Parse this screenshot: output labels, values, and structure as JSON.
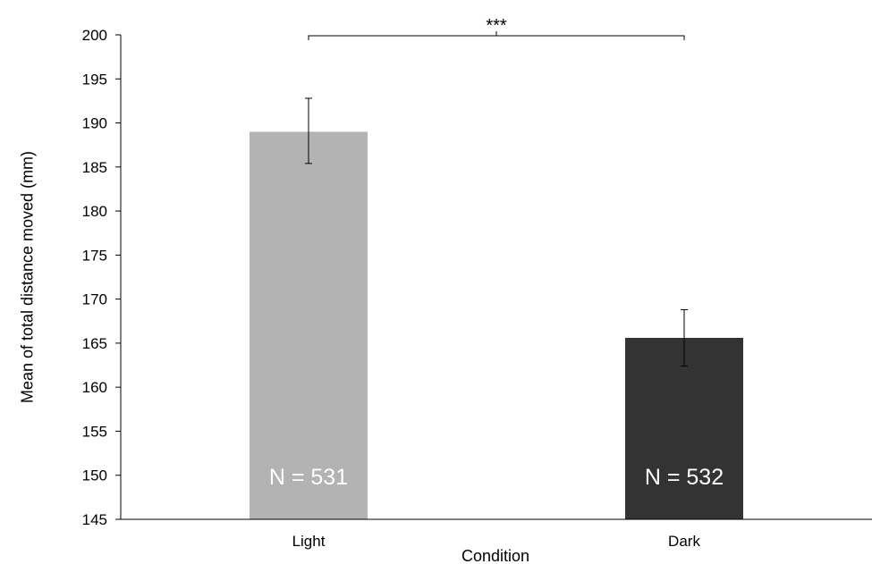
{
  "chart_data": {
    "type": "bar",
    "title": "",
    "xlabel": "Condition",
    "ylabel": "Mean of total distance moved (mm)",
    "categories": [
      "Light",
      "Dark"
    ],
    "values": [
      189,
      165.6
    ],
    "error": [
      {
        "low": 185.4,
        "high": 192.8
      },
      {
        "low": 162.4,
        "high": 168.8
      }
    ],
    "bar_labels": [
      "N = 531",
      "N = 532"
    ],
    "colors": [
      "#b3b3b3",
      "#333333"
    ],
    "ylim": [
      145,
      200
    ],
    "yticks": [
      200,
      195,
      190,
      185,
      180,
      175,
      170,
      165,
      160,
      155,
      150,
      145
    ],
    "significance": {
      "from": 0,
      "to": 1,
      "label": "***"
    },
    "grid": false,
    "legend": "none"
  }
}
